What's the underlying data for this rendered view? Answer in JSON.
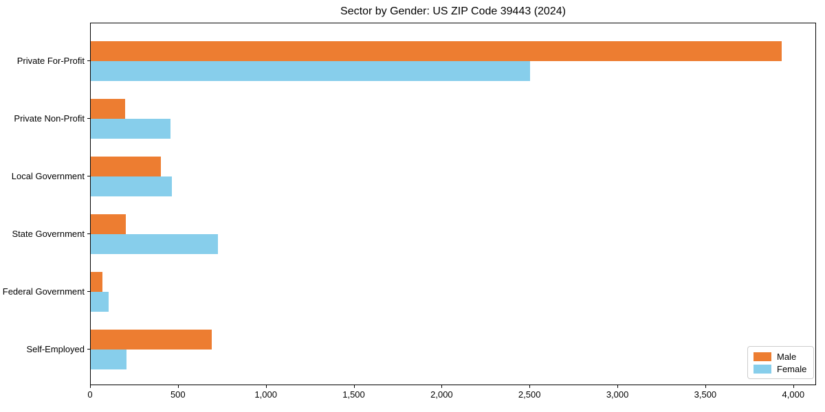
{
  "chart_data": {
    "type": "bar",
    "orientation": "horizontal",
    "title": "Sector by Gender: US ZIP Code 39443 (2024)",
    "categories": [
      "Private For-Profit",
      "Private Non-Profit",
      "Local Government",
      "State Government",
      "Federal Government",
      "Self-Employed"
    ],
    "series": [
      {
        "name": "Male",
        "color": "#ED7D31",
        "values": [
          3930,
          195,
          400,
          200,
          65,
          690
        ]
      },
      {
        "name": "Female",
        "color": "#87CEEB",
        "values": [
          2500,
          455,
          460,
          725,
          100,
          205
        ]
      }
    ],
    "xlabel": "",
    "ylabel": "",
    "xlim": [
      0,
      4130
    ],
    "xticks": {
      "values": [
        0,
        500,
        1000,
        1500,
        2000,
        2500,
        3000,
        3500,
        4000
      ],
      "labels": [
        "0",
        "500",
        "1,000",
        "1,500",
        "2,000",
        "2,500",
        "3,000",
        "3,500",
        "4,000"
      ]
    },
    "grid": false,
    "legend": {
      "position": "lower right",
      "entries": [
        "Male",
        "Female"
      ]
    }
  }
}
